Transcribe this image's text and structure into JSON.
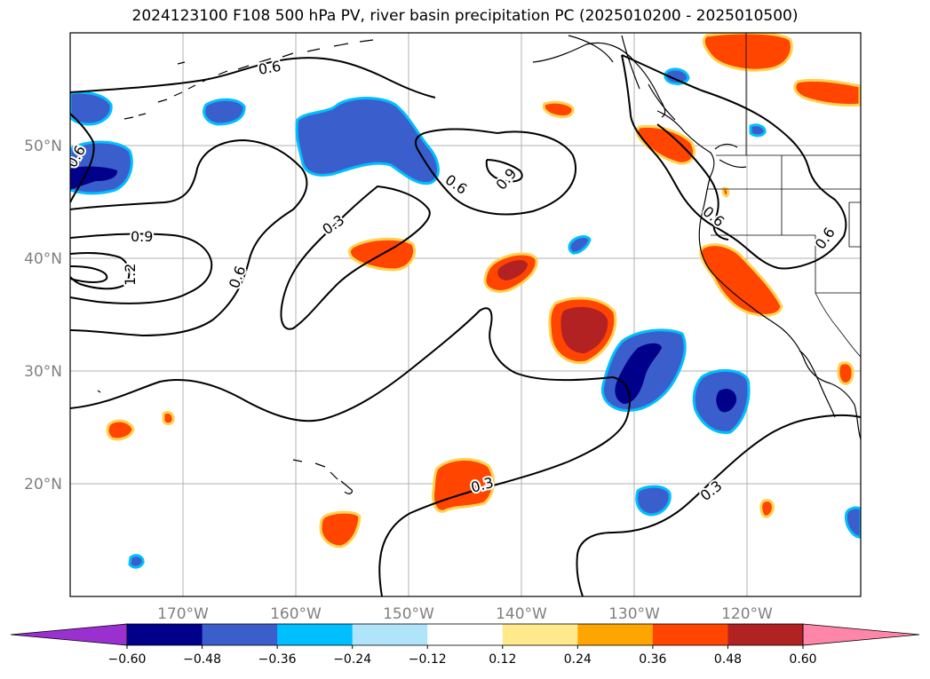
{
  "title": "2024123100 F108 500 hPa PV, river basin precipitation PC (2025010200 - 2025010500)",
  "map": {
    "lon_range": [
      -180,
      -110
    ],
    "lat_range": [
      10,
      60
    ],
    "grid": true,
    "lat_labels": [
      "20°N",
      "30°N",
      "40°N",
      "50°N"
    ],
    "lat_values": [
      20,
      30,
      40,
      50
    ],
    "lon_labels": [
      "170°W",
      "160°W",
      "150°W",
      "140°W",
      "130°W",
      "120°W"
    ],
    "lon_values": [
      -170,
      -160,
      -150,
      -140,
      -130,
      -120
    ]
  },
  "contours": {
    "variable": "500 hPa PV",
    "labels": [
      "0.6",
      "0.6",
      "0.9",
      "1.2",
      "0.6",
      "0.3",
      "0.6",
      "0.9",
      "0.6",
      "0.6",
      "0.3",
      "0.3"
    ]
  },
  "colorbar": {
    "ticks": [
      "−0.60",
      "−0.48",
      "−0.36",
      "−0.24",
      "−0.12",
      "0.12",
      "0.24",
      "0.36",
      "0.48",
      "0.60"
    ],
    "colors": [
      "#9b30d0",
      "#00008b",
      "#3a5fcd",
      "#00bfff",
      "#afe4fb",
      "#ffffff",
      "#ffe98a",
      "#ffa500",
      "#ff4500",
      "#b22222",
      "#ff86a8"
    ]
  },
  "colors": {
    "positive_high": "#b22222",
    "positive": "#ff4500",
    "positive_edge": "#ffd24d",
    "negative_high": "#00008b",
    "negative": "#3a5fcd",
    "negative_edge": "#00bfff"
  }
}
